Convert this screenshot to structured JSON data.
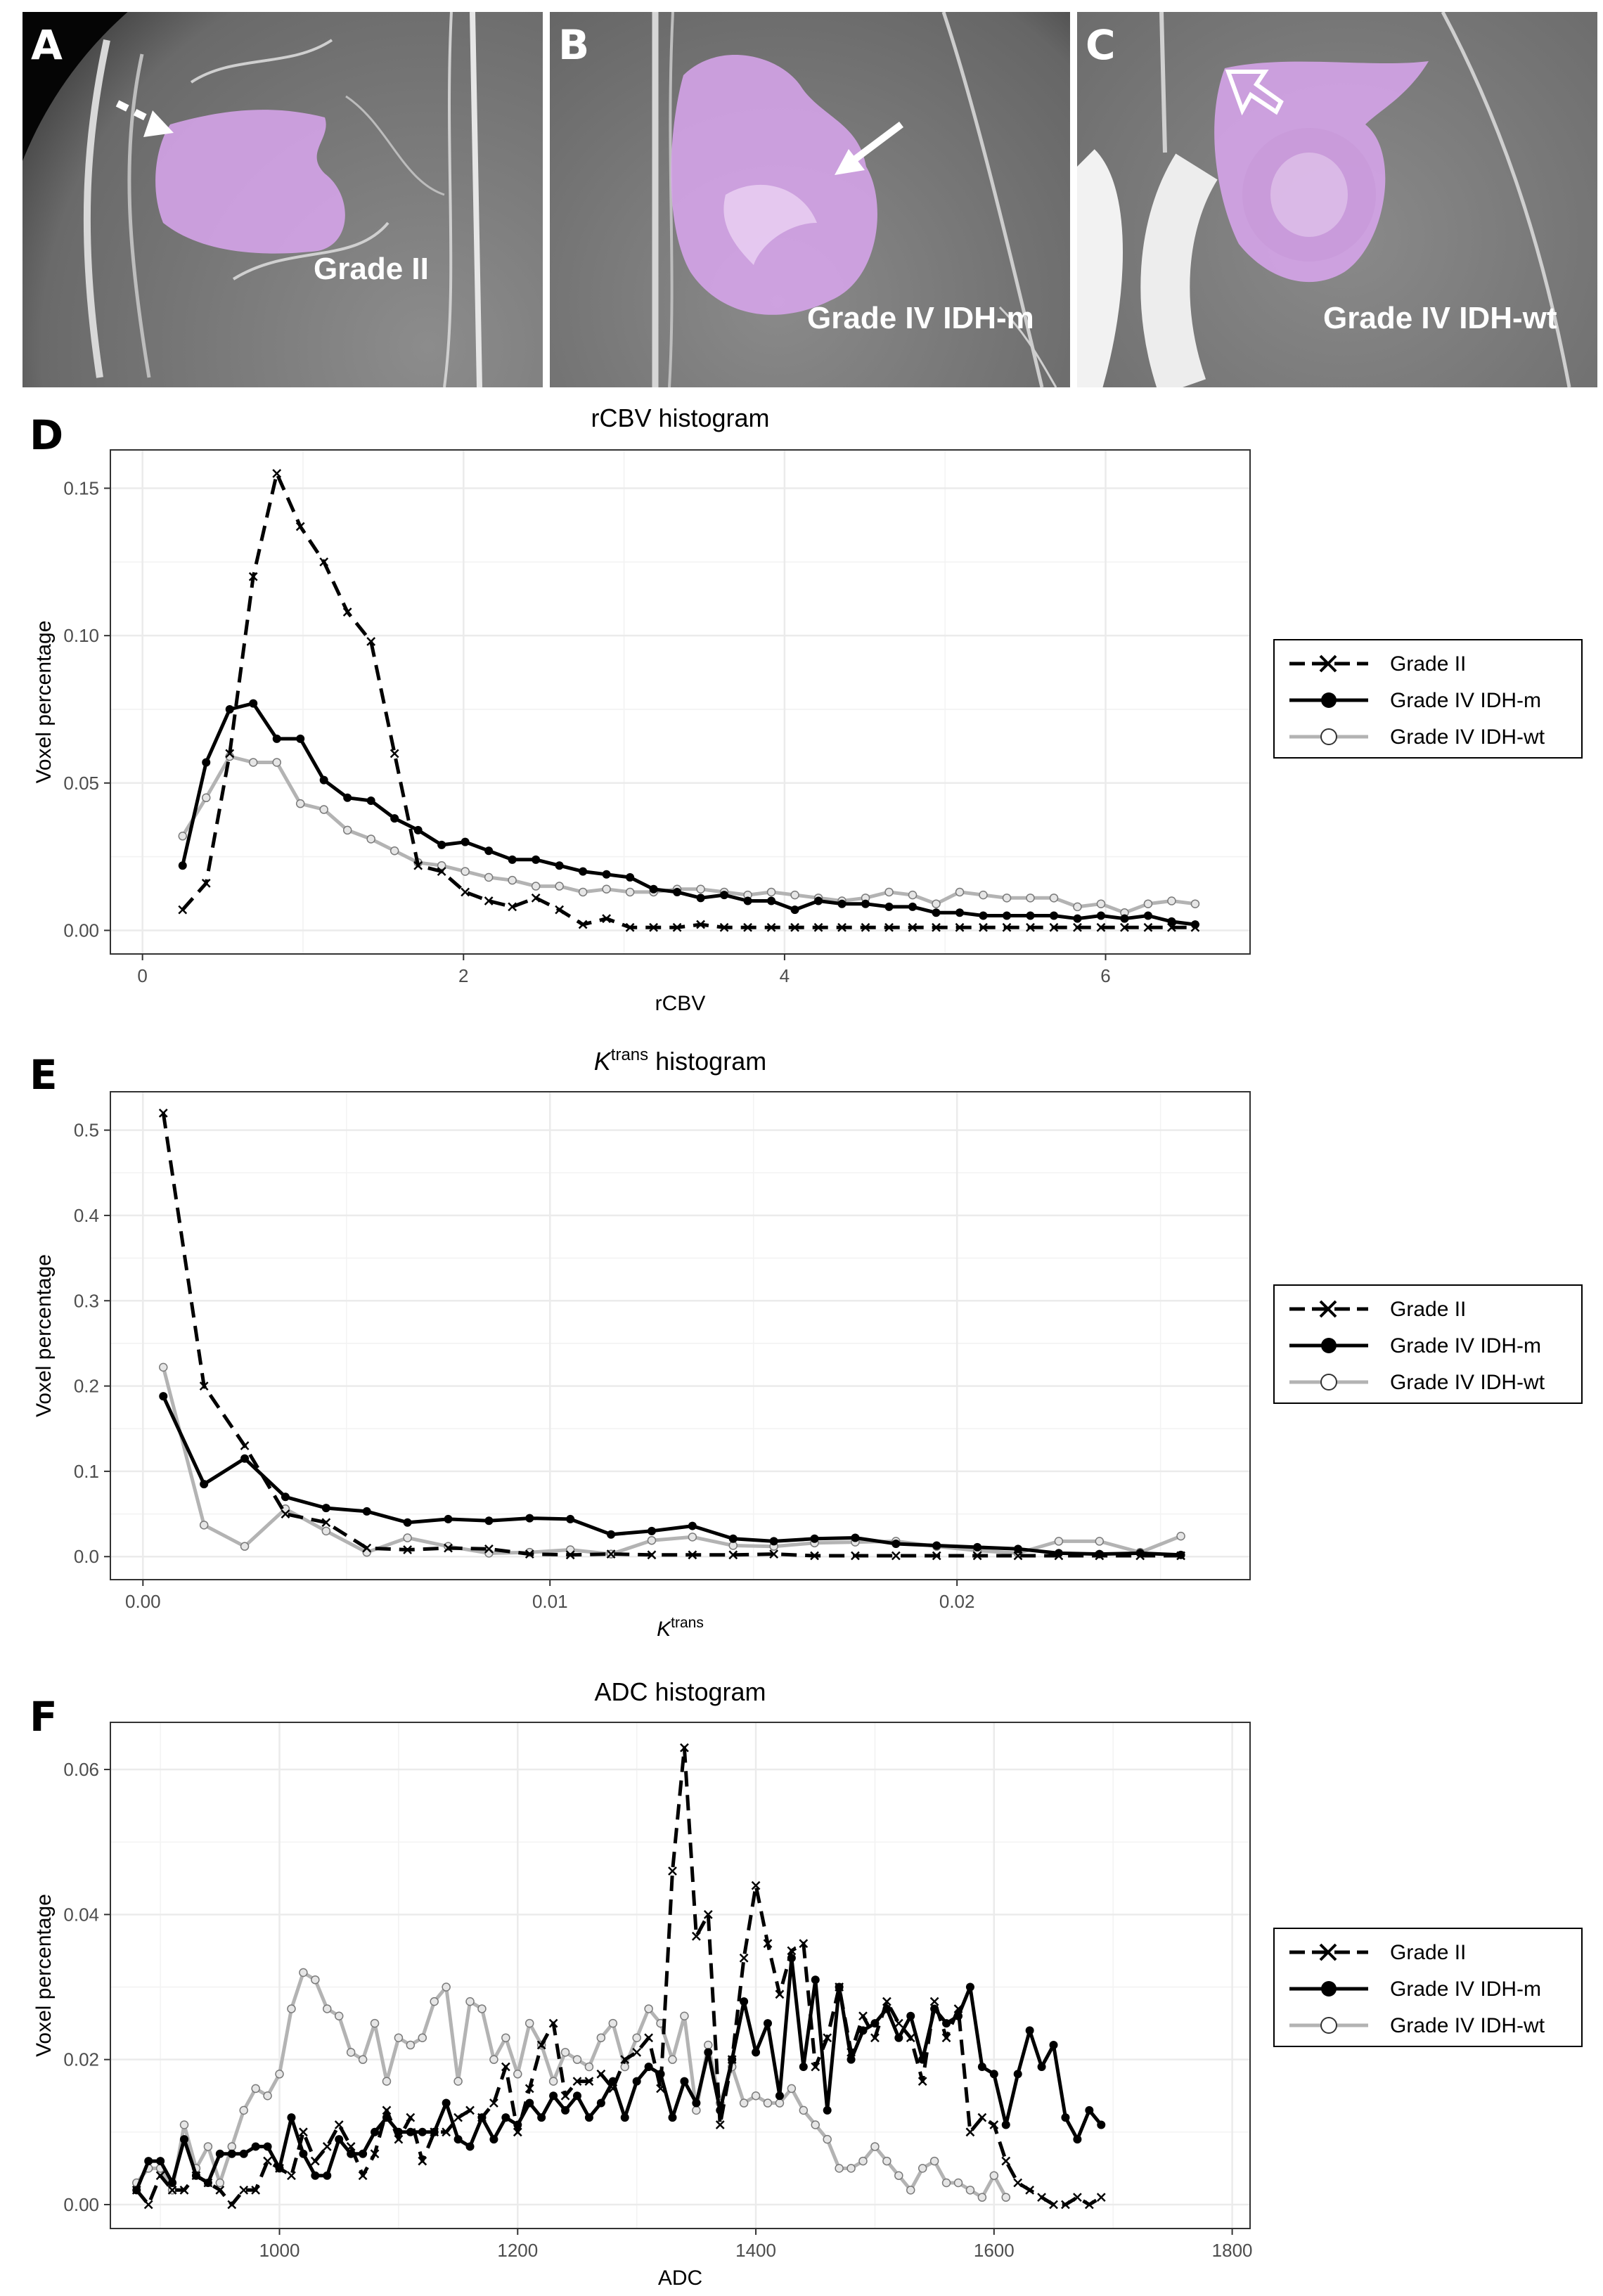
{
  "panels": [
    {
      "letter": "A",
      "label": "Grade II"
    },
    {
      "letter": "B",
      "label": "Grade IV IDH-m"
    },
    {
      "letter": "C",
      "label": "Grade IV IDH-wt"
    }
  ],
  "figure_letters": {
    "D": "D",
    "E": "E",
    "F": "F"
  },
  "colors": {
    "grade_ii": "#000000",
    "idh_m": "#000000",
    "idh_wt": "#b3b3b3",
    "tumor_overlay": "#d9a6ee",
    "grid": "#ebebeb"
  },
  "chart_data": [
    {
      "type": "line",
      "title": "rCBV histogram",
      "xlabel": "rCBV",
      "ylabel": "Voxel percentage",
      "xlim": [
        -0.2,
        6.9
      ],
      "ylim": [
        -0.008,
        0.163
      ],
      "xticks": [
        0,
        2,
        4,
        6
      ],
      "xtick_labels": [
        "0",
        "2",
        "4",
        "6"
      ],
      "yticks": [
        0,
        0.05,
        0.1,
        0.15
      ],
      "ytick_labels": [
        "0.00",
        "0.05",
        "0.10",
        "0.15"
      ],
      "x_start": 0.25,
      "x_step": 0.1467,
      "legend": [
        "Grade II",
        "Grade IV IDH-m",
        "Grade IV IDH-wt"
      ],
      "legend_position": "right",
      "series": [
        {
          "name": "Grade II",
          "style": "dashed-x",
          "values": [
            0.007,
            0.016,
            0.06,
            0.12,
            0.155,
            0.137,
            0.125,
            0.108,
            0.098,
            0.06,
            0.022,
            0.02,
            0.013,
            0.01,
            0.008,
            0.011,
            0.007,
            0.002,
            0.004,
            0.001,
            0.001,
            0.001,
            0.002,
            0.001,
            0.001,
            0.001,
            0.001,
            0.001,
            0.001,
            0.001,
            0.001,
            0.001,
            0.001,
            0.001,
            0.001,
            0.001,
            0.001,
            0.001,
            0.001,
            0.001,
            0.001,
            0.001,
            0.001,
            0.001
          ]
        },
        {
          "name": "Grade IV IDH-m",
          "style": "solid-dot",
          "values": [
            0.022,
            0.057,
            0.075,
            0.077,
            0.065,
            0.065,
            0.051,
            0.045,
            0.044,
            0.038,
            0.034,
            0.029,
            0.03,
            0.027,
            0.024,
            0.024,
            0.022,
            0.02,
            0.019,
            0.018,
            0.014,
            0.013,
            0.011,
            0.012,
            0.01,
            0.01,
            0.007,
            0.01,
            0.009,
            0.009,
            0.008,
            0.008,
            0.006,
            0.006,
            0.005,
            0.005,
            0.005,
            0.005,
            0.004,
            0.005,
            0.004,
            0.005,
            0.003,
            0.002
          ]
        },
        {
          "name": "Grade IV IDH-wt",
          "style": "solid-open",
          "values": [
            0.032,
            0.045,
            0.059,
            0.057,
            0.057,
            0.043,
            0.041,
            0.034,
            0.031,
            0.027,
            0.023,
            0.022,
            0.02,
            0.018,
            0.017,
            0.015,
            0.015,
            0.013,
            0.014,
            0.013,
            0.013,
            0.014,
            0.014,
            0.013,
            0.012,
            0.013,
            0.012,
            0.011,
            0.01,
            0.011,
            0.013,
            0.012,
            0.009,
            0.013,
            0.012,
            0.011,
            0.011,
            0.011,
            0.008,
            0.009,
            0.006,
            0.009,
            0.01,
            0.009
          ]
        }
      ]
    },
    {
      "type": "line",
      "title_prefix": "K",
      "title_sup": "trans",
      "title_suffix": " histogram",
      "xlabel_prefix": "K",
      "xlabel_sup": "trans",
      "ylabel": "Voxel percentage",
      "xlim": [
        -0.0008,
        0.0272
      ],
      "ylim": [
        -0.027,
        0.545
      ],
      "xticks": [
        0,
        0.01,
        0.02
      ],
      "xtick_labels": [
        "0.00",
        "0.01",
        "0.02"
      ],
      "yticks": [
        0,
        0.1,
        0.2,
        0.3,
        0.4,
        0.5
      ],
      "ytick_labels": [
        "0.0",
        "0.1",
        "0.2",
        "0.3",
        "0.4",
        "0.5"
      ],
      "x_start": 0.0005,
      "x_step": 0.001,
      "legend": [
        "Grade II",
        "Grade IV IDH-m",
        "Grade IV IDH-wt"
      ],
      "legend_position": "right",
      "series": [
        {
          "name": "Grade II",
          "style": "dashed-x",
          "values": [
            0.52,
            0.2,
            0.13,
            0.05,
            0.04,
            0.01,
            0.008,
            0.01,
            0.009,
            0.003,
            0.002,
            0.003,
            0.002,
            0.002,
            0.002,
            0.003,
            0.001,
            0.001,
            0.001,
            0.001,
            0.001,
            0.001,
            0.001,
            0.001,
            0.001,
            0.001
          ]
        },
        {
          "name": "Grade IV IDH-m",
          "style": "solid-dot",
          "values": [
            0.188,
            0.085,
            0.115,
            0.07,
            0.057,
            0.053,
            0.04,
            0.044,
            0.042,
            0.045,
            0.044,
            0.026,
            0.03,
            0.036,
            0.021,
            0.018,
            0.021,
            0.022,
            0.015,
            0.013,
            0.011,
            0.009,
            0.004,
            0.003,
            0.004,
            0.002
          ]
        },
        {
          "name": "Grade IV IDH-wt",
          "style": "solid-open",
          "values": [
            0.222,
            0.037,
            0.012,
            0.056,
            0.03,
            0.005,
            0.022,
            0.012,
            0.004,
            0.005,
            0.008,
            0.003,
            0.019,
            0.023,
            0.013,
            0.012,
            0.016,
            0.017,
            0.018,
            0.012,
            0.007,
            0.004,
            0.018,
            0.018,
            0.005,
            0.024
          ]
        }
      ]
    },
    {
      "type": "line",
      "title": "ADC histogram",
      "xlabel": "ADC",
      "ylabel": "Voxel percentage",
      "xlim": [
        858,
        1815
      ],
      "ylim": [
        -0.0033,
        0.0665
      ],
      "xticks": [
        1000,
        1200,
        1400,
        1600,
        1800
      ],
      "xtick_labels": [
        "1000",
        "1200",
        "1400",
        "1600",
        "1800"
      ],
      "yticks": [
        0,
        0.02,
        0.04,
        0.06
      ],
      "ytick_labels": [
        "0.00",
        "0.02",
        "0.04",
        "0.06"
      ],
      "x_start": 880,
      "x_step": 10,
      "legend": [
        "Grade II",
        "Grade IV IDH-m",
        "Grade IV IDH-wt"
      ],
      "legend_position": "right",
      "series": [
        {
          "name": "Grade II",
          "style": "dashed-x",
          "values": [
            0.002,
            0.0,
            0.004,
            0.002,
            0.002,
            0.004,
            0.003,
            0.002,
            0.0,
            0.002,
            0.002,
            0.006,
            0.005,
            0.004,
            0.01,
            0.006,
            0.008,
            0.011,
            0.008,
            0.004,
            0.007,
            0.013,
            0.009,
            0.012,
            0.006,
            0.01,
            0.01,
            0.012,
            0.013,
            0.012,
            0.014,
            0.019,
            0.01,
            0.016,
            0.022,
            0.025,
            0.015,
            0.017,
            0.017,
            0.018,
            0.016,
            0.02,
            0.021,
            0.023,
            0.016,
            0.046,
            0.063,
            0.037,
            0.04,
            0.011,
            0.02,
            0.034,
            0.044,
            0.036,
            0.029,
            0.035,
            0.036,
            0.019,
            0.023,
            0.03,
            0.021,
            0.026,
            0.023,
            0.028,
            0.025,
            0.023,
            0.017,
            0.028,
            0.023,
            0.027,
            0.01,
            0.012,
            0.011,
            0.006,
            0.003,
            0.002,
            0.001,
            0.0,
            0.0,
            0.001,
            0.0,
            0.001
          ]
        },
        {
          "name": "Grade IV IDH-m",
          "style": "solid-dot",
          "values": [
            0.002,
            0.006,
            0.006,
            0.003,
            0.009,
            0.004,
            0.003,
            0.007,
            0.007,
            0.007,
            0.008,
            0.008,
            0.005,
            0.012,
            0.007,
            0.004,
            0.004,
            0.009,
            0.007,
            0.007,
            0.01,
            0.012,
            0.01,
            0.01,
            0.01,
            0.01,
            0.014,
            0.009,
            0.008,
            0.012,
            0.009,
            0.012,
            0.011,
            0.014,
            0.012,
            0.015,
            0.013,
            0.015,
            0.012,
            0.014,
            0.017,
            0.012,
            0.017,
            0.019,
            0.018,
            0.012,
            0.017,
            0.014,
            0.021,
            0.013,
            0.02,
            0.028,
            0.021,
            0.025,
            0.015,
            0.034,
            0.019,
            0.031,
            0.013,
            0.03,
            0.02,
            0.024,
            0.025,
            0.027,
            0.023,
            0.026,
            0.02,
            0.027,
            0.025,
            0.026,
            0.03,
            0.019,
            0.018,
            0.011,
            0.018,
            0.024,
            0.019,
            0.022,
            0.012,
            0.009,
            0.013,
            0.011
          ]
        },
        {
          "name": "Grade IV IDH-wt",
          "style": "solid-open",
          "values": [
            0.003,
            0.005,
            0.005,
            0.002,
            0.011,
            0.005,
            0.008,
            0.003,
            0.008,
            0.013,
            0.016,
            0.015,
            0.018,
            0.027,
            0.032,
            0.031,
            0.027,
            0.026,
            0.021,
            0.02,
            0.025,
            0.017,
            0.023,
            0.022,
            0.023,
            0.028,
            0.03,
            0.017,
            0.028,
            0.027,
            0.02,
            0.023,
            0.018,
            0.025,
            0.022,
            0.017,
            0.021,
            0.02,
            0.019,
            0.023,
            0.025,
            0.019,
            0.023,
            0.027,
            0.025,
            0.02,
            0.026,
            0.013,
            0.022,
            0.014,
            0.019,
            0.014,
            0.015,
            0.014,
            0.014,
            0.016,
            0.013,
            0.011,
            0.009,
            0.005,
            0.005,
            0.006,
            0.008,
            0.006,
            0.004,
            0.002,
            0.005,
            0.006,
            0.003,
            0.003,
            0.002,
            0.001,
            0.004,
            0.001
          ]
        }
      ]
    }
  ]
}
